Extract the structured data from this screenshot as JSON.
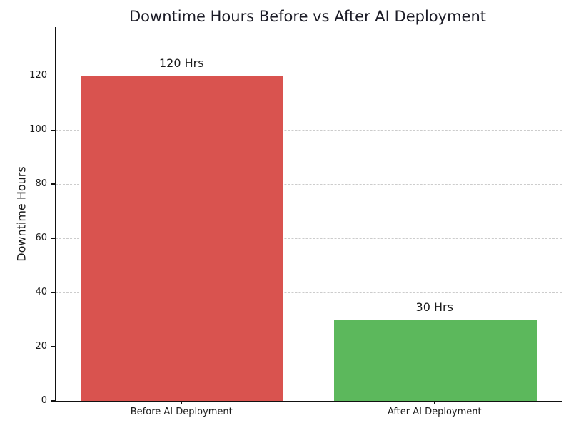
{
  "chart_data": {
    "type": "bar",
    "title": "Downtime Hours Before vs After AI Deployment",
    "xlabel": "",
    "ylabel": "Downtime Hours",
    "categories": [
      "Before AI Deployment",
      "After AI Deployment"
    ],
    "values": [
      120,
      30
    ],
    "value_labels": [
      "120 Hrs",
      "30 Hrs"
    ],
    "bar_colors": [
      "#d9534f",
      "#5cb85c"
    ],
    "yticks": [
      0,
      20,
      40,
      60,
      80,
      100,
      120
    ],
    "ylim": [
      0,
      138
    ],
    "bar_width_fraction": 0.8,
    "grid": "horizontal-dashed",
    "legend": "none",
    "colors": {
      "title_text": "#1b1b26",
      "axis_text": "#1a1a1a",
      "spine": "#111111",
      "gridline": "#cccccc",
      "background": "#ffffff"
    }
  }
}
